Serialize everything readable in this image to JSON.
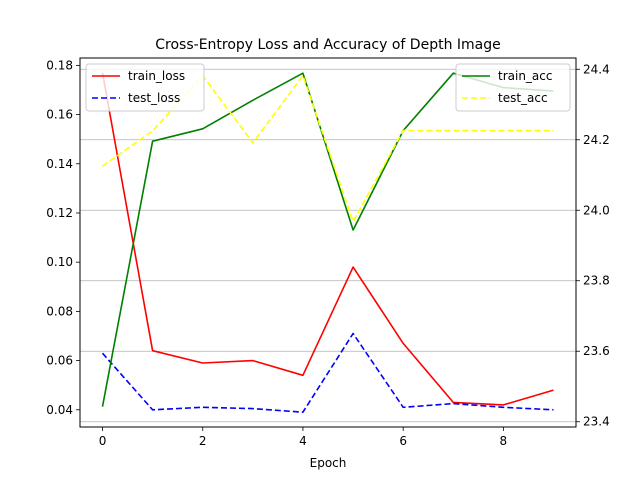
{
  "chart_data": {
    "type": "line",
    "title": "Cross-Entropy Loss and Accuracy of Depth Image",
    "xlabel": "Epoch",
    "x": [
      0,
      1,
      2,
      3,
      4,
      5,
      6,
      7,
      8,
      9
    ],
    "xlim": [
      -0.45,
      9.45
    ],
    "xticks": [
      "0",
      "2",
      "4",
      "6",
      "8"
    ],
    "xtick_values": [
      0,
      2,
      4,
      6,
      8
    ],
    "left_axis": {
      "ylim": [
        0.033,
        0.183
      ],
      "ticks": [
        "0.04",
        "0.06",
        "0.08",
        "0.10",
        "0.12",
        "0.14",
        "0.16",
        "0.18"
      ],
      "tick_values": [
        0.04,
        0.06,
        0.08,
        0.1,
        0.12,
        0.14,
        0.16,
        0.18
      ]
    },
    "right_axis": {
      "ylim": [
        23.385,
        24.432
      ],
      "ticks": [
        "23.4",
        "23.6",
        "23.8",
        "24.0",
        "24.2",
        "24.4"
      ],
      "tick_values": [
        23.4,
        23.6,
        23.8,
        24.0,
        24.2,
        24.4
      ],
      "grid": true
    },
    "series": [
      {
        "name": "train_loss",
        "axis": "left",
        "color": "#ff0000",
        "style": "solid",
        "values": [
          0.177,
          0.064,
          0.059,
          0.06,
          0.054,
          0.098,
          0.067,
          0.043,
          0.042,
          0.048
        ]
      },
      {
        "name": "test_loss",
        "axis": "left",
        "color": "#0000ff",
        "style": "dashed",
        "values": [
          0.063,
          0.04,
          0.041,
          0.0405,
          0.039,
          0.071,
          0.041,
          0.0425,
          0.041,
          0.04
        ]
      },
      {
        "name": "train_acc",
        "axis": "right",
        "color": "#008000",
        "style": "solid",
        "values": [
          23.443,
          24.196,
          24.231,
          24.312,
          24.389,
          23.944,
          24.226,
          24.389,
          24.348,
          24.338
        ]
      },
      {
        "name": "test_acc",
        "axis": "right",
        "color": "#ffff00",
        "style": "dashed",
        "values": [
          24.125,
          24.225,
          24.382,
          24.191,
          24.382,
          23.968,
          24.226,
          24.226,
          24.226,
          24.226
        ]
      }
    ],
    "legends": [
      {
        "placement": "upper-left",
        "entries": [
          "train_loss",
          "test_loss"
        ]
      },
      {
        "placement": "upper-right",
        "entries": [
          "train_acc",
          "test_acc"
        ]
      }
    ]
  }
}
